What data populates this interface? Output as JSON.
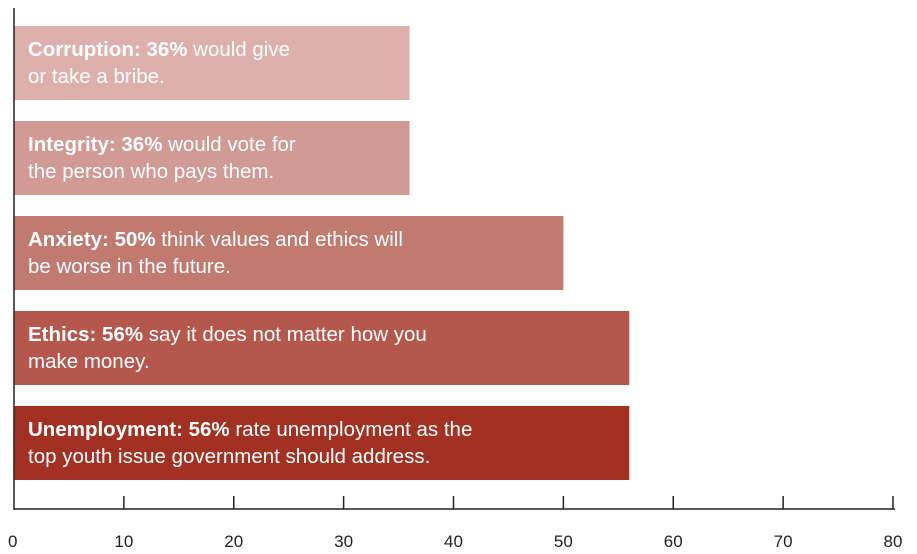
{
  "chart_data": {
    "type": "bar",
    "orientation": "horizontal",
    "categories": [
      "Corruption",
      "Integrity",
      "Anxiety",
      "Ethics",
      "Unemployment"
    ],
    "values": [
      36,
      36,
      50,
      56,
      56
    ],
    "bars": [
      {
        "bold": "Corruption: 36%",
        "line1": " would give",
        "line2": "or take a bribe.",
        "color": "#deb0ab"
      },
      {
        "bold": "Integrity: 36%",
        "line1": " would vote for",
        "line2": "the person who pays them.",
        "color": "#d19a94"
      },
      {
        "bold": "Anxiety: 50%",
        "line1": " think values and ethics will",
        "line2": "be worse in the future.",
        "color": "#c07a70"
      },
      {
        "bold": "Ethics: 56%",
        "line1": " say it does not matter how you",
        "line2": "make money.",
        "color": "#b5574d"
      },
      {
        "bold": "Unemployment: 56%",
        "line1": " rate unemployment as the",
        "line2": "top youth issue government should address.",
        "color": "#a33123"
      }
    ],
    "xlim": [
      0,
      80
    ],
    "xticks": [
      "0",
      "10",
      "20",
      "30",
      "40",
      "50",
      "60",
      "70",
      "80"
    ],
    "title": "",
    "xlabel": "",
    "ylabel": "",
    "grid": false
  }
}
